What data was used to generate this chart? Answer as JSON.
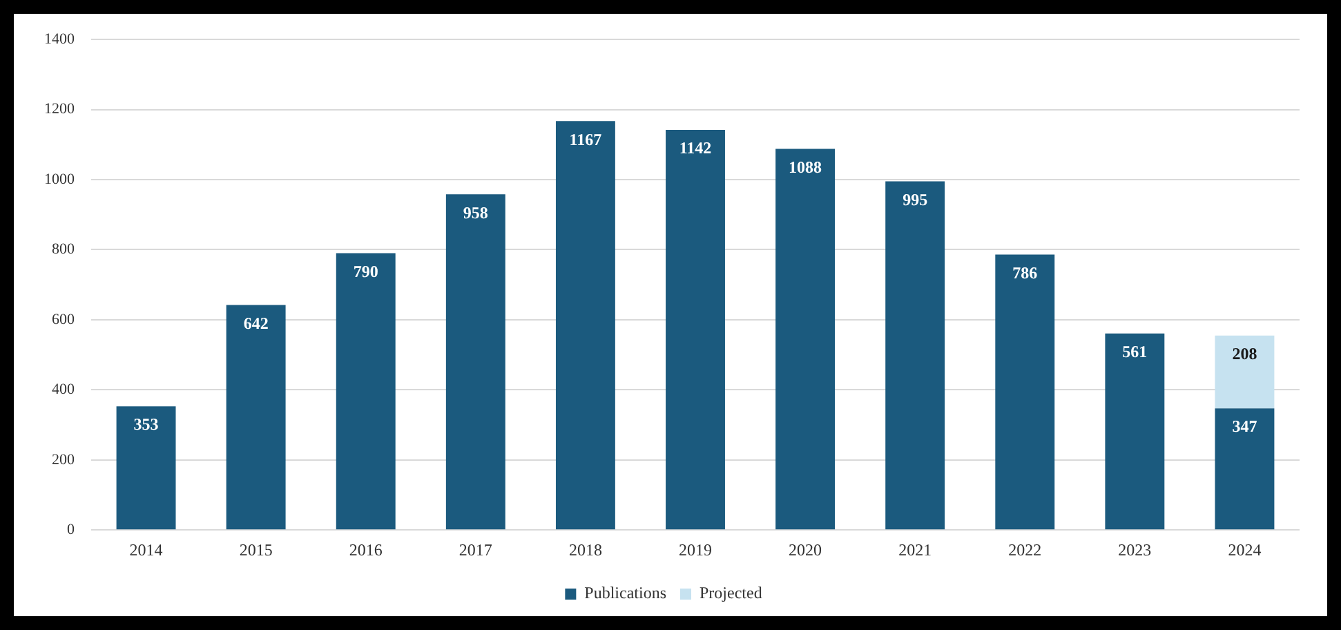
{
  "chart_data": {
    "type": "bar",
    "stacked": true,
    "categories": [
      "2014",
      "2015",
      "2016",
      "2017",
      "2018",
      "2019",
      "2020",
      "2021",
      "2022",
      "2023",
      "2024"
    ],
    "series": [
      {
        "name": "Publications",
        "color": "#1b5a7e",
        "values": [
          353,
          642,
          790,
          958,
          1167,
          1142,
          1088,
          995,
          786,
          561,
          347
        ]
      },
      {
        "name": "Projected",
        "color": "#c6e2f0",
        "values": [
          null,
          null,
          null,
          null,
          null,
          null,
          null,
          null,
          null,
          null,
          208
        ]
      }
    ],
    "ylim": [
      0,
      1400
    ],
    "yticks": [
      0,
      200,
      400,
      600,
      800,
      1000,
      1200,
      1400
    ],
    "grid": "y",
    "legend": "bottom",
    "data_labels": true
  }
}
